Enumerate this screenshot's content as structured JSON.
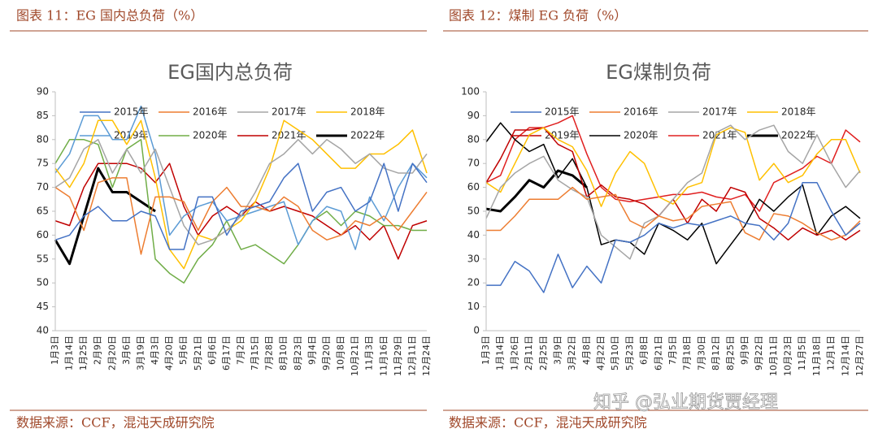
{
  "watermark": "知乎 @弘业期货贾经理",
  "chart_data": [
    {
      "type": "line",
      "caption": "图表 11：EG 国内总负荷（%）",
      "title": "EG国内总负荷",
      "source": "数据来源：CCF，混沌天成研究院",
      "categories": [
        "1月3日",
        "1月14日",
        "1月25日",
        "2月9日",
        "2月20日",
        "3月6日",
        "3月19日",
        "4月3日",
        "4月20日",
        "5月6日",
        "5月21日",
        "6月6日",
        "6月17日",
        "7月2日",
        "7月15日",
        "7月28日",
        "8月10日",
        "8月23日",
        "9月4日",
        "9月20日",
        "10月8日",
        "10月21日",
        "11月3日",
        "11月16日",
        "11月29日",
        "12月11日",
        "12月24日"
      ],
      "ylim": [
        40,
        90
      ],
      "yticks": [
        40,
        45,
        50,
        55,
        60,
        65,
        70,
        75,
        80,
        85,
        90
      ],
      "grid": false,
      "legend": "top",
      "series": [
        {
          "name": "2015年",
          "color": "#4472c4",
          "width": 1.5,
          "values": [
            59,
            60,
            64,
            66,
            63,
            63,
            65,
            64,
            57,
            57,
            68,
            68,
            60,
            65,
            66,
            67,
            72,
            75,
            65,
            69,
            70,
            65,
            67,
            75,
            65,
            75,
            71
          ]
        },
        {
          "name": "2016年",
          "color": "#ed7d31",
          "width": 1.5,
          "values": [
            70,
            68,
            61,
            71,
            72,
            72,
            56,
            68,
            68,
            67,
            61,
            67,
            70,
            66,
            66,
            65,
            68,
            66,
            61,
            59,
            60,
            63,
            62,
            64,
            61,
            65,
            69
          ]
        },
        {
          "name": "2017年",
          "color": "#a5a5a5",
          "width": 1.5,
          "values": [
            70,
            72,
            78,
            80,
            73,
            78,
            73,
            78,
            70,
            62,
            58,
            59,
            61,
            64,
            69,
            75,
            77,
            80,
            77,
            80,
            78,
            75,
            77,
            74,
            73,
            73,
            77
          ]
        },
        {
          "name": "2018年",
          "color": "#ffc000",
          "width": 1.5,
          "values": [
            74,
            70,
            75,
            84,
            84,
            79,
            84,
            72,
            57,
            53,
            60,
            59,
            61,
            63,
            67,
            74,
            84,
            82,
            80,
            77,
            74,
            74,
            77,
            77,
            79,
            82,
            73
          ]
        },
        {
          "name": "2019年",
          "color": "#5b9bd5",
          "width": 1.5,
          "values": [
            73,
            77,
            85,
            85,
            80,
            80,
            87,
            77,
            60,
            64,
            66,
            67,
            63,
            64,
            65,
            66,
            67,
            58,
            63,
            66,
            65,
            57,
            68,
            63,
            70,
            75,
            72
          ]
        },
        {
          "name": "2020年",
          "color": "#70ad47",
          "width": 1.5,
          "values": [
            75,
            80,
            80,
            79,
            70,
            78,
            80,
            55,
            52,
            50,
            55,
            58,
            63,
            57,
            58,
            56,
            54,
            58,
            63,
            65,
            62,
            65,
            64,
            62,
            62,
            61,
            61
          ]
        },
        {
          "name": "2021年",
          "color": "#c00000",
          "width": 1.5,
          "values": [
            63,
            62,
            70,
            75,
            75,
            75,
            74,
            71,
            75,
            66,
            60,
            64,
            66,
            64,
            67,
            65,
            66,
            65,
            64,
            62,
            60,
            62,
            59,
            62,
            55,
            62,
            63
          ]
        },
        {
          "name": "2022年",
          "color": "#000000",
          "width": 3,
          "values": [
            59,
            54,
            64,
            74,
            69,
            69,
            67,
            65,
            null,
            null,
            null,
            null,
            null,
            null,
            null,
            null,
            null,
            null,
            null,
            null,
            null,
            null,
            null,
            null,
            null,
            null,
            null
          ]
        }
      ]
    },
    {
      "type": "line",
      "caption": "图表 12：煤制 EG 负荷（%）",
      "title": "EG煤制负荷",
      "source": "数据来源：CCF，混沌天成研究院",
      "categories": [
        "1月3日",
        "1月14日",
        "1月26日",
        "2月11日",
        "2月25日",
        "3月9日",
        "3月22日",
        "4月8日",
        "4月22日",
        "5月10日",
        "5月23日",
        "6月8日",
        "6月21日",
        "7月5日",
        "7月18日",
        "7月30日",
        "8月12日",
        "8月25日",
        "9月9日",
        "9月22日",
        "10月11日",
        "10月23日",
        "11月5日",
        "11月18日",
        "12月1日",
        "12月14日",
        "12月27日"
      ],
      "ylim": [
        0,
        100
      ],
      "yticks": [
        0,
        10,
        20,
        30,
        40,
        50,
        60,
        70,
        80,
        90,
        100
      ],
      "grid": false,
      "legend": "top",
      "series": [
        {
          "name": "2015年",
          "color": "#4472c4",
          "width": 1.5,
          "values": [
            19,
            19,
            29,
            25,
            16,
            32,
            18,
            27,
            20,
            38,
            37,
            40,
            45,
            43,
            45,
            44,
            46,
            48,
            45,
            44,
            38,
            45,
            62,
            62,
            50,
            40,
            45
          ]
        },
        {
          "name": "2016年",
          "color": "#ed7d31",
          "width": 1.5,
          "values": [
            42,
            42,
            48,
            55,
            55,
            55,
            60,
            55,
            56,
            57,
            46,
            43,
            48,
            46,
            47,
            52,
            53,
            54,
            41,
            38,
            49,
            48,
            45,
            41,
            38,
            40,
            46
          ]
        },
        {
          "name": "2017年",
          "color": "#a5a5a5",
          "width": 1.5,
          "values": [
            47,
            60,
            66,
            70,
            73,
            63,
            59,
            56,
            40,
            35,
            30,
            45,
            48,
            55,
            62,
            66,
            83,
            86,
            80,
            84,
            86,
            75,
            70,
            82,
            70,
            60,
            67
          ]
        },
        {
          "name": "2018年",
          "color": "#ffc000",
          "width": 1.5,
          "values": [
            62,
            58,
            70,
            82,
            85,
            80,
            77,
            67,
            52,
            66,
            75,
            70,
            56,
            53,
            60,
            62,
            82,
            85,
            83,
            63,
            70,
            62,
            65,
            74,
            80,
            80,
            66
          ]
        },
        {
          "name": "2019年",
          "color": "#c00000",
          "width": 1.5,
          "values": [
            62,
            72,
            84,
            84,
            85,
            78,
            75,
            56,
            61,
            56,
            55,
            53,
            48,
            55,
            45,
            55,
            50,
            60,
            58,
            47,
            43,
            38,
            43,
            40,
            42,
            38,
            42
          ]
        },
        {
          "name": "2020年",
          "color": "#000000",
          "width": 1.5,
          "values": [
            79,
            87,
            80,
            75,
            78,
            64,
            72,
            60,
            36,
            38,
            37,
            32,
            45,
            42,
            38,
            45,
            28,
            36,
            44,
            55,
            50,
            56,
            61,
            40,
            48,
            52,
            47
          ]
        },
        {
          "name": "2021年",
          "color": "#e02020",
          "width": 1.5,
          "values": [
            62,
            65,
            80,
            85,
            85,
            87,
            90,
            74,
            60,
            55,
            54,
            55,
            56,
            57,
            57,
            58,
            56,
            55,
            57,
            50,
            62,
            65,
            68,
            73,
            70,
            84,
            79
          ]
        },
        {
          "name": "2022年",
          "color": "#000000",
          "width": 3,
          "values": [
            51,
            50,
            56,
            63,
            60,
            67,
            65,
            60,
            null,
            null,
            null,
            null,
            null,
            null,
            null,
            null,
            null,
            null,
            null,
            null,
            null,
            null,
            null,
            null,
            null,
            null,
            null
          ]
        }
      ]
    }
  ]
}
